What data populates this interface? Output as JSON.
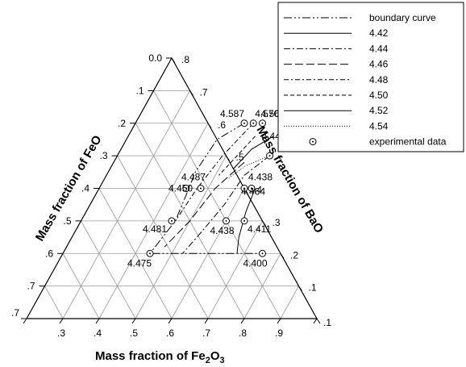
{
  "chart_data": {
    "type": "ternary",
    "axes": {
      "left": "Mass fraction of FeO",
      "right": "Mass fraction of BaO",
      "bottom": "Mass fraction of Fe",
      "bottom_sub_1": "2",
      "bottom_mid": "O",
      "bottom_sub_2": "3"
    },
    "ticks": {
      "left": [
        "0.0",
        ".1",
        ".2",
        ".3",
        ".4",
        ".5",
        ".6",
        ".7"
      ],
      "right": [
        ".8",
        ".7",
        ".6",
        ".5",
        ".4",
        ".3",
        ".2",
        ".1"
      ],
      "bottom": [
        ".3",
        ".4",
        ".5",
        ".6",
        ".7",
        ".8",
        ".9"
      ]
    },
    "legend": [
      {
        "label": "boundary curve",
        "style": "dashdotdot"
      },
      {
        "label": "4.42",
        "style": "solid"
      },
      {
        "label": "4.44",
        "style": "dashdot"
      },
      {
        "label": "4.46",
        "style": "longdash"
      },
      {
        "label": "4.48",
        "style": "dashdot2"
      },
      {
        "label": "4.50",
        "style": "dash"
      },
      {
        "label": "4.52",
        "style": "solid2"
      },
      {
        "label": "4.54",
        "style": "dotted"
      },
      {
        "label": "experimental data",
        "style": "marker"
      }
    ],
    "experimental_data": [
      {
        "label": "4.587",
        "fe2o3": 0.5,
        "bao": 0.6,
        "feo": -0.1
      },
      {
        "label": "4.570",
        "fe2o3": 0.525,
        "bao": 0.6,
        "feo": -0.125
      },
      {
        "label": "4.568",
        "fe2o3": 0.55,
        "bao": 0.6,
        "feo": -0.15
      },
      {
        "label": "4.449",
        "fe2o3": 0.62,
        "bao": 0.5,
        "feo": -0.12
      },
      {
        "label": "4.487",
        "fe2o3": 0.44,
        "bao": 0.4,
        "feo": 0.16
      },
      {
        "label": "4.438",
        "fe2o3": 0.62,
        "bao": 0.4,
        "feo": -0.02
      },
      {
        "label": "4.450",
        "fe2o3": 0.48,
        "bao": 0.4,
        "feo": 0.12
      },
      {
        "label": "4.464",
        "fe2o3": 0.6,
        "bao": 0.4,
        "feo": 0.0
      },
      {
        "label": "4.481",
        "fe2o3": 0.45,
        "bao": 0.3,
        "feo": 0.25
      },
      {
        "label": "4.438",
        "fe2o3": 0.6,
        "bao": 0.3,
        "feo": 0.1
      },
      {
        "label": "4.411",
        "fe2o3": 0.65,
        "bao": 0.3,
        "feo": 0.05
      },
      {
        "label": "4.475",
        "fe2o3": 0.44,
        "bao": 0.2,
        "feo": 0.36
      },
      {
        "label": "4.400",
        "fe2o3": 0.75,
        "bao": 0.2,
        "feo": 0.05
      }
    ],
    "curves": [
      {
        "name": "boundary curve",
        "style": "dashdotdot",
        "points": [
          [
            0.5,
            0.6
          ],
          [
            0.45,
            0.55
          ],
          [
            0.44,
            0.45
          ],
          [
            0.45,
            0.38
          ],
          [
            0.46,
            0.3
          ],
          [
            0.44,
            0.2
          ],
          [
            0.62,
            0.2
          ],
          [
            0.75,
            0.2
          ]
        ]
      },
      {
        "name": "4.42",
        "style": "solid",
        "points": [
          [
            0.63,
            0.4
          ],
          [
            0.64,
            0.33
          ],
          [
            0.66,
            0.25
          ],
          [
            0.68,
            0.2
          ]
        ]
      },
      {
        "name": "4.44",
        "style": "dashdot",
        "points": [
          [
            0.62,
            0.5
          ],
          [
            0.58,
            0.44
          ],
          [
            0.57,
            0.35
          ],
          [
            0.55,
            0.27
          ],
          [
            0.53,
            0.2
          ]
        ]
      },
      {
        "name": "4.46",
        "style": "longdash",
        "points": [
          [
            0.56,
            0.48
          ],
          [
            0.52,
            0.4
          ],
          [
            0.5,
            0.3
          ],
          [
            0.47,
            0.22
          ]
        ]
      },
      {
        "name": "4.48",
        "style": "dashdot2",
        "points": [
          [
            0.525,
            0.6
          ],
          [
            0.49,
            0.5
          ],
          [
            0.47,
            0.4
          ],
          [
            0.46,
            0.3
          ]
        ]
      },
      {
        "name": "4.50",
        "style": "dash",
        "points": [
          [
            0.55,
            0.56
          ],
          [
            0.53,
            0.5
          ],
          [
            0.51,
            0.44
          ]
        ]
      },
      {
        "name": "4.52",
        "style": "solid2",
        "points": [
          [
            0.6,
            0.56
          ],
          [
            0.56,
            0.52
          ],
          [
            0.54,
            0.46
          ]
        ]
      },
      {
        "name": "4.54",
        "style": "dotted",
        "points": [
          [
            0.62,
            0.5
          ],
          [
            0.57,
            0.47
          ],
          [
            0.54,
            0.43
          ]
        ]
      }
    ]
  }
}
